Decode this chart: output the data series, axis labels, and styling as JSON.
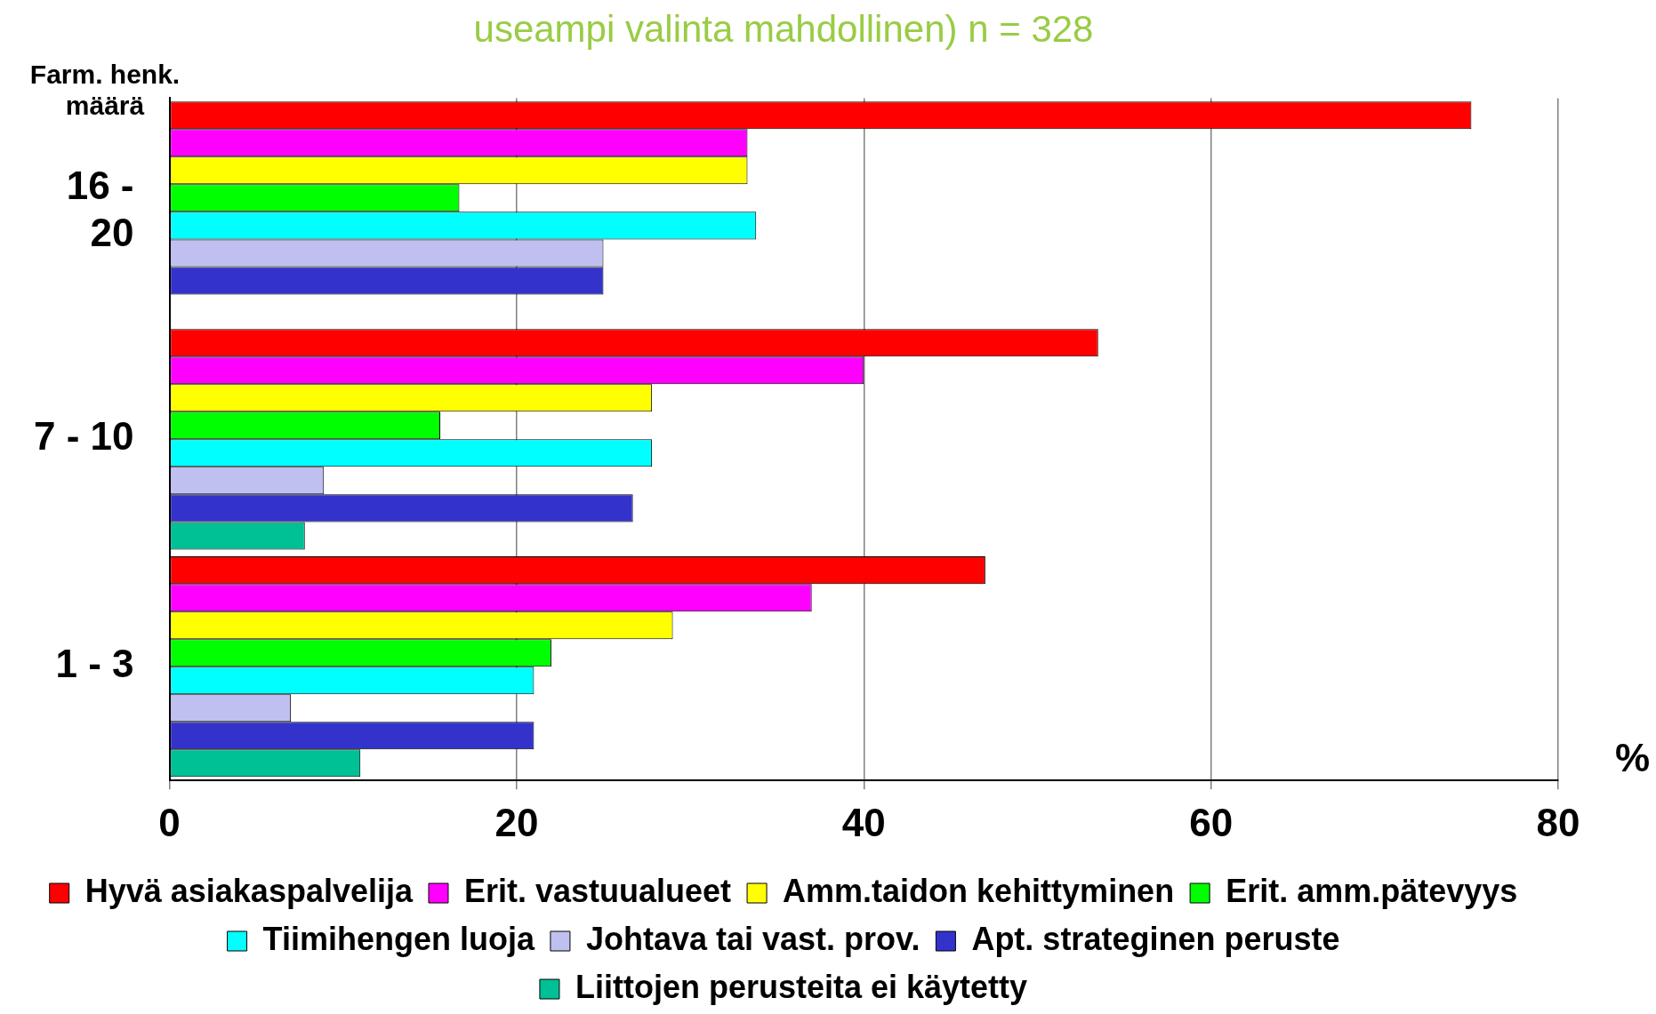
{
  "chart_data": {
    "type": "bar",
    "orientation": "horizontal",
    "title": "useampi valinta mahdollinen) n = 328",
    "ylabel": "Farm. henk. määrä",
    "xlabel": "%",
    "categories": [
      "16 - 20",
      "7 - 10",
      "1 - 3"
    ],
    "series": [
      {
        "name": "Hyvä asiakaspalvelija",
        "color": "#ff0000",
        "values": [
          75,
          53.5,
          47
        ]
      },
      {
        "name": "Erit. vastuualueet",
        "color": "#ff00ff",
        "values": [
          33.3,
          40,
          37
        ]
      },
      {
        "name": "Amm.taidon kehittyminen",
        "color": "#ffff00",
        "values": [
          33.3,
          27.8,
          29
        ]
      },
      {
        "name": "Erit. amm.pätevyys",
        "color": "#00ff00",
        "values": [
          16.7,
          15.6,
          22
        ]
      },
      {
        "name": "Tiimihengen luoja",
        "color": "#00ffff",
        "values": [
          33.8,
          27.8,
          21
        ]
      },
      {
        "name": "Johtava tai vast. prov.",
        "color": "#c0c0f0",
        "values": [
          25,
          8.9,
          7
        ]
      },
      {
        "name": "Apt. strateginen peruste",
        "color": "#3333cc",
        "values": [
          25,
          26.7,
          21
        ]
      },
      {
        "name": "Liittojen perusteita ei käytetty",
        "color": "#00c096",
        "values": [
          null,
          7.8,
          11
        ]
      }
    ],
    "xlim": [
      0,
      80
    ],
    "xticks": [
      0,
      20,
      40,
      60,
      80
    ],
    "grid": "x",
    "legend": "bottom"
  }
}
